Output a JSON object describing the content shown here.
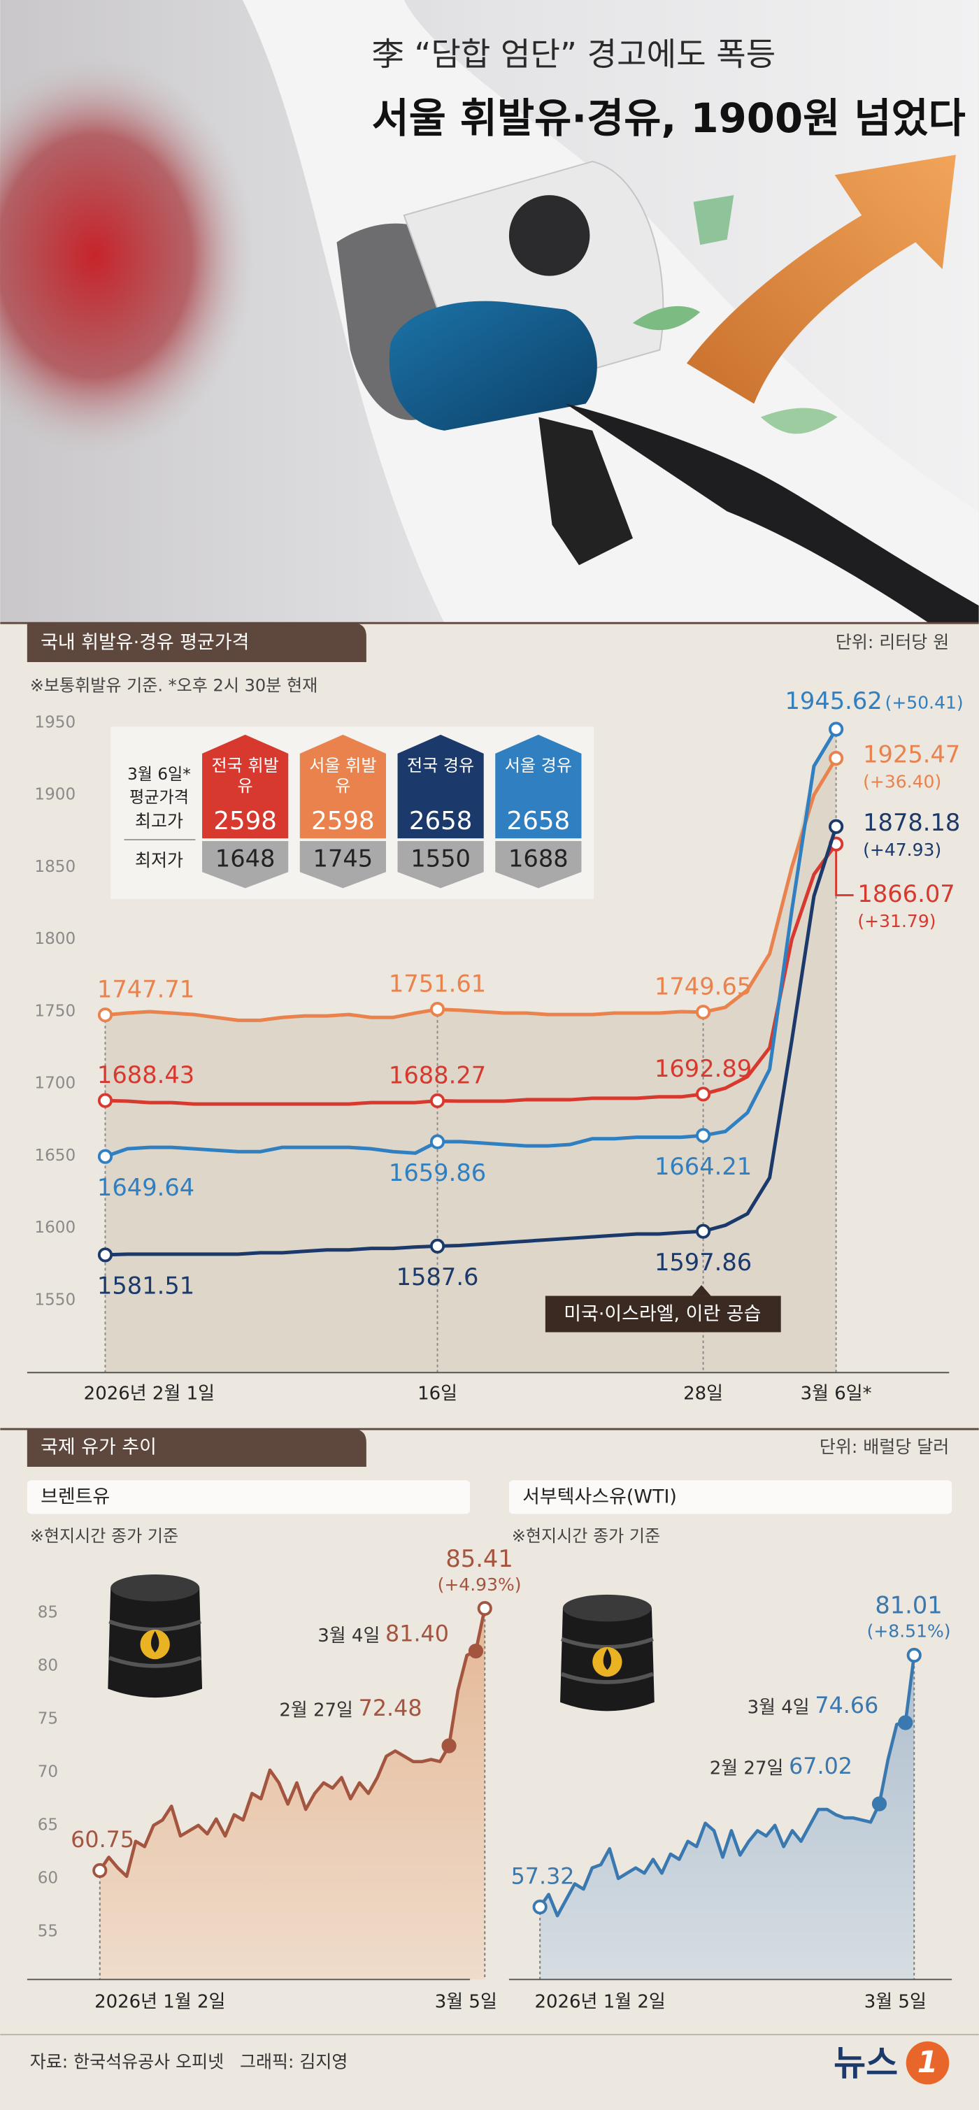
{
  "header": {
    "subtitle": "李 “담합 엄단” 경고에도 폭등",
    "title": "서울 휘발유·경유, 1900원 넘었다"
  },
  "sections": [
    {
      "title": "국내 휘발유·경유 평균가격",
      "unit": "단위: 리터당 원"
    },
    {
      "title": "국제 유가 추이",
      "unit": "단위: 배럴당 달러"
    }
  ],
  "chart_data": [
    {
      "type": "line",
      "note": "※보통휘발유 기준. *오후 2시 30분 현재",
      "categories": [
        "2026년 2월 1일",
        null,
        null,
        null,
        null,
        null,
        null,
        null,
        null,
        null,
        null,
        null,
        null,
        null,
        null,
        "16일",
        null,
        null,
        null,
        null,
        null,
        null,
        null,
        null,
        null,
        null,
        null,
        "28일",
        null,
        null,
        null,
        null,
        null,
        "3월 6일*"
      ],
      "ylim": [
        1500,
        1980
      ],
      "yticks": [
        1550,
        1600,
        1650,
        1700,
        1750,
        1800,
        1850,
        1900,
        1950
      ],
      "annotation": "미국·이스라엘, 이란 공습",
      "table": {
        "heading": [
          "3월 6일*",
          "평균가격"
        ],
        "max_label": "최고가",
        "min_label": "최저가"
      },
      "series": [
        {
          "name": "전국 휘발유",
          "color": "#d8392f",
          "values": [
            1688.43,
            1688,
            1687,
            1687,
            1686,
            1686,
            1686,
            1686,
            1686,
            1686,
            1686,
            1686,
            1687,
            1687,
            1687,
            1688.27,
            1688,
            1688,
            1688,
            1689,
            1689,
            1689,
            1690,
            1690,
            1690,
            1691,
            1691,
            1692.89,
            1697,
            1705,
            1725,
            1800,
            1845,
            1866.07
          ],
          "value_labels": [
            "1688.43",
            null,
            null,
            null,
            null,
            null,
            null,
            null,
            null,
            null,
            null,
            null,
            null,
            null,
            null,
            "1688.27",
            null,
            null,
            null,
            null,
            null,
            null,
            null,
            null,
            null,
            null,
            null,
            "1692.89",
            null,
            null,
            null,
            null,
            null,
            "1866.07"
          ],
          "change_label": "(+31.79)",
          "max_price": 2598,
          "min_price": 1648
        },
        {
          "name": "서울 휘발유",
          "color": "#e9824d",
          "values": [
            1747.71,
            1749,
            1750,
            1749,
            1748,
            1746,
            1744,
            1744,
            1746,
            1747,
            1747,
            1748,
            1746,
            1746,
            1749,
            1751.61,
            1751,
            1750,
            1749,
            1749,
            1748,
            1748,
            1748,
            1749,
            1749,
            1749,
            1750,
            1749.65,
            1753,
            1765,
            1790,
            1850,
            1900,
            1925.47
          ],
          "value_labels": [
            "1747.71",
            null,
            null,
            null,
            null,
            null,
            null,
            null,
            null,
            null,
            null,
            null,
            null,
            null,
            null,
            "1751.61",
            null,
            null,
            null,
            null,
            null,
            null,
            null,
            null,
            null,
            null,
            null,
            "1749.65",
            null,
            null,
            null,
            null,
            null,
            "1925.47"
          ],
          "change_label": "(+36.40)",
          "max_price": 2598,
          "min_price": 1745
        },
        {
          "name": "전국 경유",
          "color": "#1b3a6b",
          "values": [
            1581.51,
            1582,
            1582,
            1582,
            1582,
            1582,
            1582,
            1583,
            1583,
            1584,
            1585,
            1585,
            1586,
            1586,
            1587,
            1587.6,
            1588,
            1589,
            1590,
            1591,
            1592,
            1593,
            1594,
            1595,
            1596,
            1596,
            1597,
            1597.86,
            1602,
            1610,
            1635,
            1730,
            1830,
            1878.18
          ],
          "value_labels": [
            "1581.51",
            null,
            null,
            null,
            null,
            null,
            null,
            null,
            null,
            null,
            null,
            null,
            null,
            null,
            null,
            "1587.6",
            null,
            null,
            null,
            null,
            null,
            null,
            null,
            null,
            null,
            null,
            null,
            "1597.86",
            null,
            null,
            null,
            null,
            null,
            "1878.18"
          ],
          "change_label": "(+47.93)",
          "max_price": 2658,
          "min_price": 1550
        },
        {
          "name": "서울 경유",
          "color": "#2f7fc1",
          "values": [
            1649.64,
            1655,
            1656,
            1656,
            1655,
            1654,
            1653,
            1653,
            1656,
            1656,
            1656,
            1656,
            1655,
            1653,
            1652,
            1659.86,
            1660,
            1659,
            1658,
            1657,
            1657,
            1658,
            1662,
            1662,
            1663,
            1663,
            1663,
            1664.21,
            1667,
            1680,
            1710,
            1820,
            1920,
            1945.62
          ],
          "value_labels": [
            "1649.64",
            null,
            null,
            null,
            null,
            null,
            null,
            null,
            null,
            null,
            null,
            null,
            null,
            null,
            null,
            "1659.86",
            null,
            null,
            null,
            null,
            null,
            null,
            null,
            null,
            null,
            null,
            null,
            "1664.21",
            null,
            null,
            null,
            null,
            null,
            "1945.62"
          ],
          "change_label": "(+50.41)",
          "max_price": 2658,
          "min_price": 1688
        }
      ]
    },
    {
      "type": "area",
      "title": "브렌트유",
      "note": "※현지시간 종가 기준",
      "color": "#a3553f",
      "fill": "#e6c3a6",
      "categories": [
        "2026년 1월 2일",
        null,
        null,
        null,
        null,
        null,
        null,
        null,
        null,
        null,
        null,
        null,
        null,
        null,
        null,
        null,
        null,
        null,
        null,
        null,
        null,
        null,
        null,
        null,
        null,
        null,
        null,
        null,
        null,
        null,
        null,
        null,
        null,
        null,
        null,
        null,
        null,
        null,
        null,
        null,
        null,
        null,
        null,
        "3월 5일"
      ],
      "values": [
        60.75,
        62,
        61,
        60.2,
        63.5,
        63,
        65,
        65.5,
        66.8,
        64,
        64.5,
        65,
        64.2,
        65.6,
        64,
        66,
        65.5,
        68,
        67.5,
        70.2,
        69,
        67,
        69,
        66.5,
        68,
        69,
        68.5,
        69.5,
        67.5,
        69,
        68,
        69.5,
        71.5,
        72,
        71.5,
        71,
        71,
        71.2,
        71,
        72.48,
        77.7,
        81,
        81.4,
        85.41
      ],
      "value_labels": [
        "60.75",
        null,
        null,
        null,
        null,
        null,
        null,
        null,
        null,
        null,
        null,
        null,
        null,
        null,
        null,
        null,
        null,
        null,
        null,
        null,
        null,
        null,
        null,
        null,
        null,
        null,
        null,
        null,
        null,
        null,
        null,
        null,
        null,
        null,
        null,
        null,
        null,
        null,
        null,
        "72.48",
        null,
        null,
        "81.40",
        "85.41"
      ],
      "point_notes": [
        null,
        null,
        null,
        null,
        null,
        null,
        null,
        null,
        null,
        null,
        null,
        null,
        null,
        null,
        null,
        null,
        null,
        null,
        null,
        null,
        null,
        null,
        null,
        null,
        null,
        null,
        null,
        null,
        null,
        null,
        null,
        null,
        null,
        null,
        null,
        null,
        null,
        null,
        null,
        "2월 27일",
        null,
        null,
        "3월 4일",
        null
      ],
      "change_labels": [
        null,
        null,
        null,
        null,
        null,
        null,
        null,
        null,
        null,
        null,
        null,
        null,
        null,
        null,
        null,
        null,
        null,
        null,
        null,
        null,
        null,
        null,
        null,
        null,
        null,
        null,
        null,
        null,
        null,
        null,
        null,
        null,
        null,
        null,
        null,
        null,
        null,
        null,
        null,
        null,
        null,
        null,
        null,
        "(+4.93%)"
      ],
      "ylim": [
        50.5,
        90
      ],
      "yticks": [
        55,
        60,
        65,
        70,
        75,
        80,
        85
      ]
    },
    {
      "type": "area",
      "title": "서부텍사스유(WTI)",
      "note": "※현지시간 종가 기준",
      "color": "#3a78b0",
      "fill": "#b8c6d3",
      "categories": [
        "2026년 1월 2일",
        null,
        null,
        null,
        null,
        null,
        null,
        null,
        null,
        null,
        null,
        null,
        null,
        null,
        null,
        null,
        null,
        null,
        null,
        null,
        null,
        null,
        null,
        null,
        null,
        null,
        null,
        null,
        null,
        null,
        null,
        null,
        null,
        null,
        null,
        null,
        null,
        null,
        null,
        null,
        null,
        null,
        null,
        "3월 5일"
      ],
      "values": [
        57.32,
        58.5,
        56.5,
        58,
        59.5,
        59,
        61,
        61.3,
        62.8,
        60,
        60.5,
        61,
        60.5,
        61.8,
        60.5,
        62.3,
        61.8,
        63.5,
        63,
        65.2,
        64.5,
        62,
        64.5,
        62.2,
        63.5,
        64.5,
        64,
        65,
        63,
        64.5,
        63.5,
        65,
        66.5,
        66.5,
        66,
        65.7,
        65.7,
        65.5,
        65.3,
        67.02,
        71.2,
        74.5,
        74.66,
        81.01
      ],
      "value_labels": [
        "57.32",
        null,
        null,
        null,
        null,
        null,
        null,
        null,
        null,
        null,
        null,
        null,
        null,
        null,
        null,
        null,
        null,
        null,
        null,
        null,
        null,
        null,
        null,
        null,
        null,
        null,
        null,
        null,
        null,
        null,
        null,
        null,
        null,
        null,
        null,
        null,
        null,
        null,
        null,
        "67.02",
        null,
        null,
        "74.66",
        "81.01"
      ],
      "point_notes": [
        null,
        null,
        null,
        null,
        null,
        null,
        null,
        null,
        null,
        null,
        null,
        null,
        null,
        null,
        null,
        null,
        null,
        null,
        null,
        null,
        null,
        null,
        null,
        null,
        null,
        null,
        null,
        null,
        null,
        null,
        null,
        null,
        null,
        null,
        null,
        null,
        null,
        null,
        null,
        "2월 27일",
        null,
        null,
        "3월 4일",
        null
      ],
      "change_labels": [
        null,
        null,
        null,
        null,
        null,
        null,
        null,
        null,
        null,
        null,
        null,
        null,
        null,
        null,
        null,
        null,
        null,
        null,
        null,
        null,
        null,
        null,
        null,
        null,
        null,
        null,
        null,
        null,
        null,
        null,
        null,
        null,
        null,
        null,
        null,
        null,
        null,
        null,
        null,
        null,
        null,
        null,
        null,
        "(+8.51%)"
      ],
      "ylim": [
        50.5,
        90
      ]
    }
  ],
  "footer": {
    "source": "자료: 한국석유공사 오피넷",
    "credit": "그래픽: 김지영",
    "logo": "뉴스",
    "logo_mark": "1"
  }
}
